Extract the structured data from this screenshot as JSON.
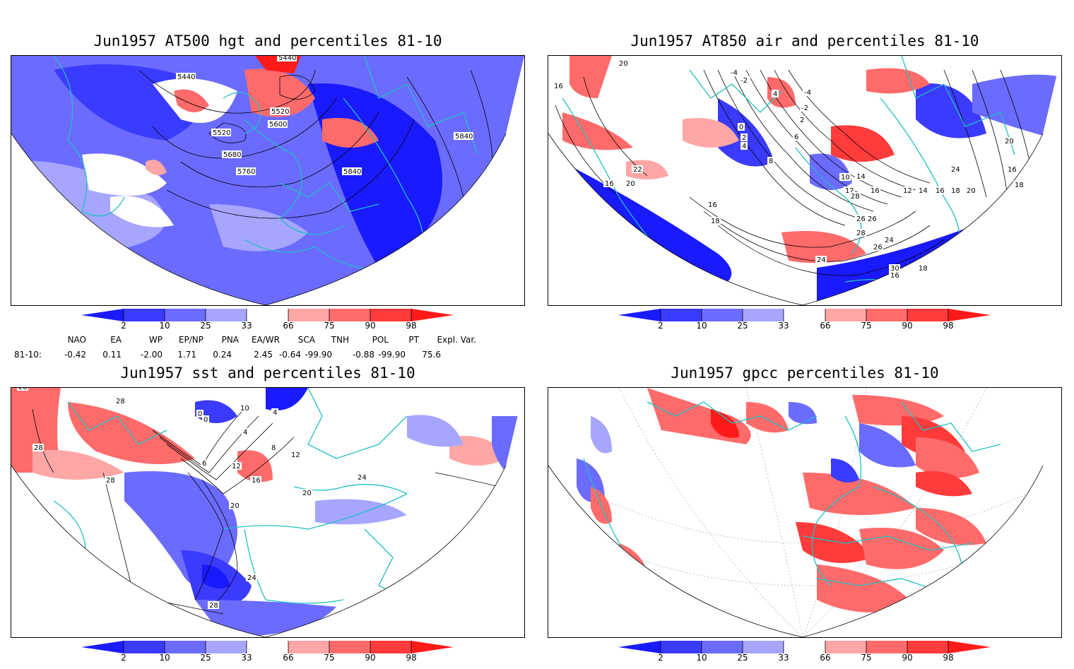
{
  "panels": [
    {
      "id": "hgt",
      "title": "Jun1957 AT500 hgt and percentiles 81-10",
      "contour_labels": [
        "5440",
        "5440",
        "5520",
        "5520",
        "5600",
        "5680",
        "5760",
        "5840",
        "5840"
      ]
    },
    {
      "id": "air",
      "title": "Jun1957 AT850 air and percentiles 81-10",
      "contour_labels": [
        "20",
        "16",
        "-4",
        "-2",
        "4",
        "-4",
        "-2",
        "2",
        "0",
        "2",
        "4",
        "6",
        "8",
        "10",
        "12",
        "14",
        "16",
        "18",
        "16",
        "12",
        "14",
        "16",
        "18",
        "20",
        "22",
        "24",
        "26",
        "28",
        "26",
        "24",
        "30",
        "26",
        "24",
        "20",
        "16",
        "18",
        "16",
        "20",
        "28",
        "16",
        "18"
      ]
    },
    {
      "id": "sst",
      "title": "Jun1957 sst and percentiles 81-10",
      "contour_labels": [
        "28",
        "28",
        "28",
        "28",
        "0",
        "0",
        "4",
        "4",
        "6",
        "8",
        "10",
        "12",
        "12",
        "16",
        "20",
        "20",
        "24",
        "24",
        "28"
      ]
    },
    {
      "id": "gpcc",
      "title": "Jun1957 gpcc percentiles 81-10",
      "contour_labels": []
    }
  ],
  "colorbar": {
    "labels": [
      "2",
      "10",
      "25",
      "33",
      "66",
      "75",
      "90",
      "98"
    ],
    "colors": {
      "lt2": "#1a1aff",
      "b2_10": "#3b3bff",
      "b10_25": "#6b6bff",
      "b25_33": "#a6a6ff",
      "b33_66": "#ffffff",
      "b66_75": "#ffa6a6",
      "b75_90": "#ff6b6b",
      "b90_98": "#ff3b3b",
      "gt98": "#ff1a1a"
    }
  },
  "teleconnections": {
    "headers": [
      "NAO",
      "EA",
      "WP",
      "EP/NP",
      "PNA",
      "EA/WR",
      "SCA",
      "TNH",
      "POL",
      "PT",
      "Expl. Var."
    ],
    "row_label": "81-10:",
    "values": [
      "-0.42",
      "0.11",
      "-2.00",
      "1.71",
      "0.24",
      "2.45",
      "-0.64",
      "-99.90",
      "-0.88",
      "-99.90",
      "75.6"
    ]
  },
  "colors": {
    "coast": "#20c0c0",
    "contour": "#000000",
    "grid": "#999999"
  }
}
